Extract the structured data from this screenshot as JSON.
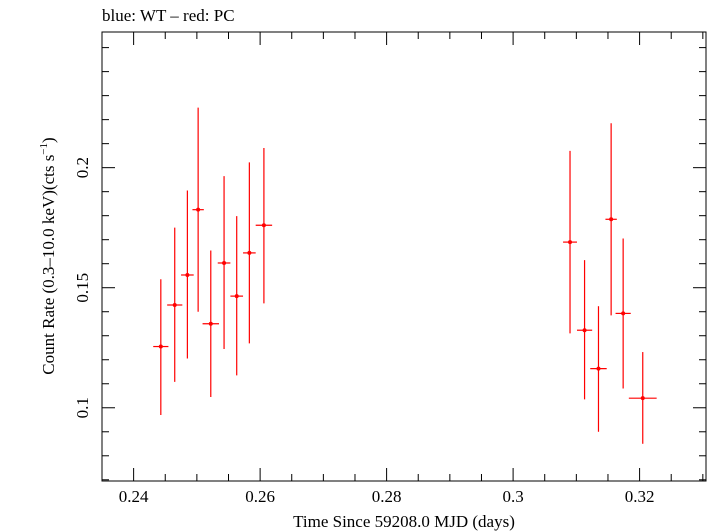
{
  "chart_data": {
    "type": "scatter",
    "title": "blue: WT – red: PC",
    "xlabel": "Time Since 59208.0 MJD (days)",
    "ylabel_main": "Count Rate (0.3–10.0 keV)(cts s",
    "ylabel_sup": "−1",
    "ylabel_end": ")",
    "xlim": [
      0.235,
      0.3305
    ],
    "ylim": [
      0.0695,
      0.2565
    ],
    "x_ticks": [
      0.24,
      0.26,
      0.28,
      0.3,
      0.32
    ],
    "x_tick_labels": [
      "0.24",
      "0.26",
      "0.28",
      "0.3",
      "0.32"
    ],
    "y_ticks": [
      0.1,
      0.15,
      0.2
    ],
    "y_tick_labels": [
      "0.1",
      "0.15",
      "0.2"
    ],
    "grid": false,
    "colors": {
      "pc": "#ff0000",
      "axis": "#000000"
    },
    "series": [
      {
        "color": "#ff0000",
        "points": [
          {
            "x": 0.2443,
            "xerr": 0.0012,
            "y": 0.1255,
            "ylo": 0.097,
            "yhi": 0.1535
          },
          {
            "x": 0.2465,
            "xerr": 0.0012,
            "y": 0.1428,
            "ylo": 0.1108,
            "yhi": 0.175
          },
          {
            "x": 0.2485,
            "xerr": 0.001,
            "y": 0.1553,
            "ylo": 0.1205,
            "yhi": 0.1905
          },
          {
            "x": 0.2502,
            "xerr": 0.0009,
            "y": 0.1825,
            "ylo": 0.14,
            "yhi": 0.225
          },
          {
            "x": 0.2522,
            "xerr": 0.0013,
            "y": 0.135,
            "ylo": 0.1045,
            "yhi": 0.1655
          },
          {
            "x": 0.2543,
            "xerr": 0.001,
            "y": 0.1603,
            "ylo": 0.1245,
            "yhi": 0.1965
          },
          {
            "x": 0.2563,
            "xerr": 0.001,
            "y": 0.1465,
            "ylo": 0.1135,
            "yhi": 0.1798
          },
          {
            "x": 0.2583,
            "xerr": 0.001,
            "y": 0.1645,
            "ylo": 0.1268,
            "yhi": 0.2022
          },
          {
            "x": 0.2606,
            "xerr": 0.0013,
            "y": 0.176,
            "ylo": 0.1435,
            "yhi": 0.2082
          },
          {
            "x": 0.309,
            "xerr": 0.0011,
            "y": 0.169,
            "ylo": 0.131,
            "yhi": 0.207
          },
          {
            "x": 0.3113,
            "xerr": 0.0012,
            "y": 0.1323,
            "ylo": 0.1035,
            "yhi": 0.1615
          },
          {
            "x": 0.3135,
            "xerr": 0.0013,
            "y": 0.1163,
            "ylo": 0.09,
            "yhi": 0.1423
          },
          {
            "x": 0.3155,
            "xerr": 0.0009,
            "y": 0.1785,
            "ylo": 0.1385,
            "yhi": 0.2185
          },
          {
            "x": 0.3174,
            "xerr": 0.0012,
            "y": 0.1393,
            "ylo": 0.108,
            "yhi": 0.1705
          },
          {
            "x": 0.3205,
            "xerr": 0.0022,
            "y": 0.104,
            "ylo": 0.085,
            "yhi": 0.1232
          }
        ]
      }
    ]
  }
}
